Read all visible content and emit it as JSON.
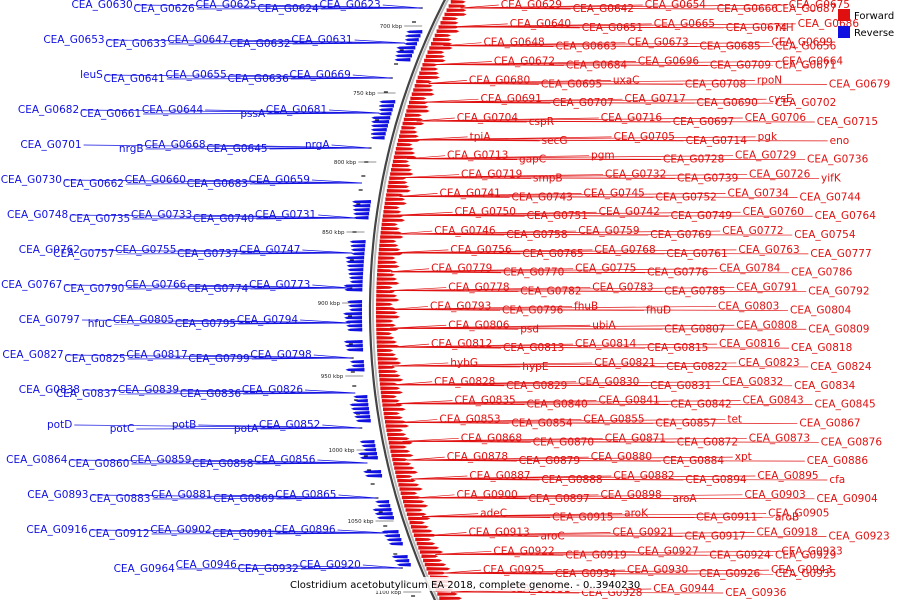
{
  "colors": {
    "forward": "#e01010",
    "reverse": "#1010e0",
    "backbone": "#555555"
  },
  "legend": {
    "forward": "Forward",
    "reverse": "Reverse"
  },
  "caption": "Clostridium acetobutylicum EA 2018, complete genome. - 0..3940230",
  "ticks": [
    "700 kbp",
    "750 kbp",
    "800 kbp",
    "850 kbp",
    "900 kbp",
    "950 kbp",
    "1000 kbp",
    "1050 kbp",
    "1100 kbp"
  ],
  "forward_labels": [
    "CEA_G0629",
    "CEA_G0642",
    "CEA_G0654",
    "CEA_G0666",
    "CEA_G0675",
    "CEA_G0687",
    "CEA_G0640",
    "CEA_G0651",
    "CEA_G0665",
    "CEA_G0674",
    "CEA_G0686",
    "ntH",
    "CEA_G0648",
    "CEA_G0663",
    "CEA_G0673",
    "CEA_G0685",
    "CEA_G0699",
    "CEA_G0656",
    "CEA_G0672",
    "CEA_G0684",
    "CEA_G0696",
    "CEA_G0709",
    "CEA_G0664",
    "CEA_G0671",
    "CEA_G0680",
    "CEA_G0695",
    "uxaC",
    "CEA_G0708",
    "rpoN",
    "CEA_G0679",
    "CEA_G0691",
    "CEA_G0707",
    "CEA_G0717",
    "CEA_G0690",
    "cysE",
    "CEA_G0702",
    "CEA_G0704",
    "cspR",
    "CEA_G0716",
    "CEA_G0697",
    "CEA_G0706",
    "CEA_G0715",
    "tpiA",
    "secG",
    "CEA_G0705",
    "CEA_G0714",
    "pgk",
    "eno",
    "CEA_G0713",
    "gapC",
    "pgm",
    "CEA_G0728",
    "CEA_G0729",
    "CEA_G0736",
    "CEA_G0719",
    "smpB",
    "CEA_G0732",
    "CEA_G0739",
    "CEA_G0726",
    "yifK",
    "CEA_G0741",
    "CEA_G0743",
    "CEA_G0745",
    "CEA_G0752",
    "CEA_G0734",
    "CEA_G0744",
    "CEA_G0750",
    "CEA_G0751",
    "CEA_G0742",
    "CEA_G0749",
    "CEA_G0760",
    "CEA_G0764",
    "CEA_G0746",
    "CEA_G0758",
    "CEA_G0759",
    "CEA_G0769",
    "CEA_G0772",
    "CEA_G0754",
    "CEA_G0756",
    "CEA_G0765",
    "CEA_G0768",
    "CEA_G0761",
    "CEA_G0763",
    "CEA_G0777",
    "CEA_G0779",
    "CEA_G0770",
    "CEA_G0775",
    "CEA_G0776",
    "CEA_G0784",
    "CEA_G0786",
    "CEA_G0778",
    "CEA_G0782",
    "CEA_G0783",
    "CEA_G0785",
    "CEA_G0791",
    "CEA_G0792",
    "CEA_G0793",
    "CEA_G0796",
    "fhuB",
    "fhuD",
    "CEA_G0803",
    "CEA_G0804",
    "CEA_G0806",
    "psd",
    "ubiA",
    "CEA_G0807",
    "CEA_G0808",
    "CEA_G0809",
    "CEA_G0812",
    "CEA_G0813",
    "CEA_G0814",
    "CEA_G0815",
    "CEA_G0816",
    "CEA_G0818",
    "hybG",
    "hypE",
    "CEA_G0821",
    "CEA_G0822",
    "CEA_G0823",
    "CEA_G0824",
    "CEA_G0828",
    "CEA_G0829",
    "CEA_G0830",
    "CEA_G0831",
    "CEA_G0832",
    "CEA_G0834",
    "CEA_G0835",
    "CEA_G0840",
    "CEA_G0841",
    "CEA_G0842",
    "CEA_G0843",
    "CEA_G0845",
    "CEA_G0853",
    "CEA_G0854",
    "CEA_G0855",
    "CEA_G0857",
    "tet",
    "CEA_G0867",
    "CEA_G0868",
    "CEA_G0870",
    "CEA_G0871",
    "CEA_G0872",
    "CEA_G0873",
    "CEA_G0876",
    "CEA_G0878",
    "CEA_G0879",
    "CEA_G0880",
    "CEA_G0884",
    "xpt",
    "CEA_G0886",
    "CEA_G0887",
    "CEA_G0888",
    "CEA_G0882",
    "CEA_G0894",
    "CEA_G0895",
    "cfa",
    "CEA_G0900",
    "CEA_G0897",
    "CEA_G0898",
    "aroA",
    "CEA_G0903",
    "CEA_G0904",
    "adeC",
    "CEA_G0915",
    "aroK",
    "CEA_G0911",
    "CEA_G0905",
    "aroB",
    "CEA_G0913",
    "aroC",
    "CEA_G0921",
    "CEA_G0917",
    "CEA_G0918",
    "CEA_G0923",
    "CEA_G0922",
    "CEA_G0919",
    "CEA_G0927",
    "CEA_G0924",
    "CEA_G0933",
    "CEA_G0929",
    "CEA_G0925",
    "CEA_G0934",
    "CEA_G0930",
    "CEA_G0926",
    "CEA_G0943",
    "CEA_G0935",
    "CEA_G0931",
    "CEA_G0928",
    "CEA_G0944",
    "CEA_G0936"
  ],
  "reverse_labels": [
    "CEA_G0623",
    "CEA_G0624",
    "CEA_G0625",
    "CEA_G0626",
    "CEA_G0630",
    "CEA_G0631",
    "CEA_G0632",
    "CEA_G0647",
    "CEA_G0633",
    "CEA_G0653",
    "CEA_G0669",
    "CEA_G0636",
    "CEA_G0655",
    "CEA_G0641",
    "leuS",
    "CEA_G0681",
    "pssA",
    "CEA_G0644",
    "CEA_G0661",
    "CEA_G0682",
    "nrgA",
    "CEA_G0645",
    "CEA_G0668",
    "nrgB",
    "CEA_G0701",
    "CEA_G0659",
    "CEA_G0683",
    "CEA_G0660",
    "CEA_G0662",
    "CEA_G0730",
    "CEA_G0731",
    "CEA_G0740",
    "CEA_G0733",
    "CEA_G0735",
    "CEA_G0748",
    "CEA_G0747",
    "CEA_G0737",
    "CEA_G0755",
    "CEA_G0757",
    "CEA_G0762",
    "CEA_G0773",
    "CEA_G0774",
    "CEA_G0766",
    "CEA_G0790",
    "CEA_G0767",
    "CEA_G0794",
    "CEA_G0795",
    "CEA_G0805",
    "hfuC",
    "CEA_G0797",
    "CEA_G0798",
    "CEA_G0799",
    "CEA_G0817",
    "CEA_G0825",
    "CEA_G0827",
    "CEA_G0826",
    "CEA_G0836",
    "CEA_G0839",
    "CEA_G0837",
    "CEA_G0838",
    "CEA_G0852",
    "potA",
    "potB",
    "potC",
    "potD",
    "CEA_G0856",
    "CEA_G0858",
    "CEA_G0859",
    "CEA_G0860",
    "CEA_G0864",
    "CEA_G0865",
    "CEA_G0869",
    "CEA_G0881",
    "CEA_G0883",
    "CEA_G0893",
    "CEA_G0896",
    "CEA_G0901",
    "CEA_G0902",
    "CEA_G0912",
    "CEA_G0916",
    "CEA_G0920",
    "CEA_G0932",
    "CEA_G0946",
    "CEA_G0964"
  ]
}
